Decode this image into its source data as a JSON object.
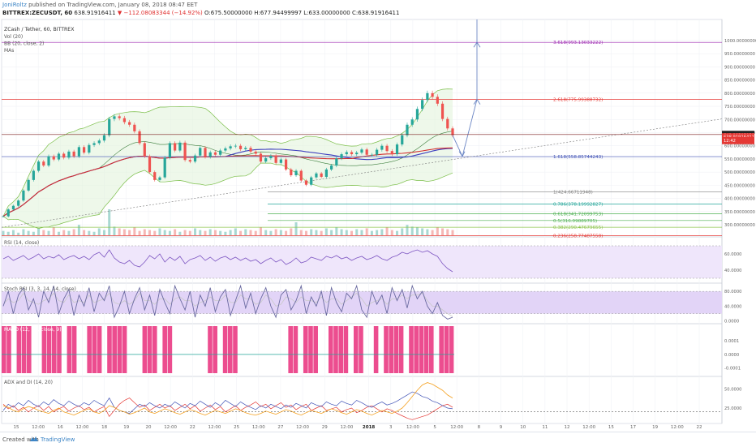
{
  "header": {
    "author": "JoniRoltz",
    "published": "published on TradingView.com, January 08, 2018 08:47 EET",
    "symbol": "BITTREX:ZECUSDT, 60",
    "last": "638.91916411",
    "change": "▼ −112.08083344 (−14.92%)",
    "ohlc": "O:675.50000000 H:677.94499997 L:633.00000000 C:638.91916411"
  },
  "footer": {
    "created": "Created with",
    "brand": "TradingView"
  },
  "colors": {
    "up": "#26a69a",
    "down": "#ef5350",
    "bb": "#7cbf4a",
    "ma_red": "#d32f2f",
    "ma_blue": "#3f3fbf",
    "rsi": "#7e57c2",
    "stoch_k": "#6a6aa0",
    "stoch_d": "#c9c9c9",
    "pink": "#ec4d8f",
    "adx": "#f4a020",
    "di_plus": "#3f51b5",
    "di_minus": "#e53935"
  },
  "chart_data": [
    {
      "id": "price",
      "type": "line",
      "title": "ZCash / Tether, 60, BITTREX",
      "indicator_labels": [
        "Vol (20)",
        "BB (20, close, 2)",
        "MAs"
      ],
      "ylim": [
        260,
        1080
      ],
      "y_ticks": [
        "1000.00000000",
        "950.00000000",
        "900.00000000",
        "850.00000000",
        "800.00000000",
        "750.00000000",
        "700.00000000",
        "650.00000000",
        "600.00000000",
        "550.00000000",
        "500.00000000",
        "450.00000000",
        "400.00000000",
        "350.00000000",
        "300.00000000"
      ],
      "x_ticks": [
        "15",
        "12:00",
        "16",
        "12:00",
        "18",
        "19",
        "20",
        "12:00",
        "22",
        "12:00",
        "25",
        "12:00",
        "27",
        "12:00",
        "29",
        "12:00",
        "2018",
        "3",
        "12:00",
        "5",
        "12:00",
        "8",
        "9",
        "10",
        "11",
        "12",
        "12:00",
        "15",
        "17",
        "19",
        "12:00",
        "22"
      ],
      "current_labels": [
        {
          "price": 642.98,
          "text": "642.98505959",
          "color": "#222222"
        },
        {
          "price": 634.0,
          "text": "638.91916411",
          "color": "#e53935"
        },
        {
          "price": 620.0,
          "text": "12:42",
          "color": "#e53935"
        }
      ],
      "close": [
        332,
        358,
        372,
        392,
        430,
        470,
        505,
        540,
        525,
        560,
        548,
        570,
        555,
        578,
        560,
        595,
        574,
        603,
        610,
        620,
        640,
        702,
        712,
        705,
        690,
        680,
        655,
        610,
        560,
        500,
        470,
        480,
        555,
        610,
        582,
        612,
        546,
        540,
        563,
        592,
        558,
        575,
        566,
        582,
        590,
        598,
        600,
        587,
        592,
        578,
        570,
        540,
        553,
        562,
        535,
        548,
        510,
        488,
        505,
        468,
        452,
        480,
        495,
        482,
        510,
        525,
        552,
        568,
        576,
        568,
        574,
        586,
        566,
        566,
        585,
        600,
        580,
        568,
        605,
        640,
        680,
        700,
        740,
        774,
        800,
        786,
        760,
        702,
        666,
        640
      ],
      "volume": [
        5,
        4,
        6,
        3,
        7,
        5,
        4,
        8,
        6,
        5,
        9,
        4,
        6,
        5,
        7,
        12,
        6,
        5,
        4,
        8,
        6,
        30,
        10,
        8,
        7,
        6,
        9,
        5,
        7,
        6,
        5,
        8,
        6,
        5,
        7,
        4,
        6,
        5,
        8,
        6,
        5,
        7,
        6,
        5,
        4,
        6,
        8,
        5,
        7,
        6,
        5,
        9,
        6,
        5,
        7,
        6,
        5,
        8,
        15,
        6,
        5,
        7,
        6,
        5,
        8,
        6,
        9,
        7,
        6,
        5,
        7,
        6,
        8,
        5,
        6,
        7,
        9,
        6,
        5,
        8,
        12,
        10,
        9,
        8,
        7,
        6,
        9,
        8,
        7,
        6
      ],
      "fib_levels": [
        {
          "ratio": "3.618",
          "price": 993.13033222,
          "text": "3.618(993.13033222)",
          "color": "#9c27b0"
        },
        {
          "ratio": "2.618",
          "price": 775.99388732,
          "text": "2.618(775.99388732)",
          "color": "#e53935"
        },
        {
          "ratio": "1.618",
          "price": 558.85744243,
          "text": "1.618(558.85744243)",
          "color": "#3f51b5"
        },
        {
          "ratio": "1",
          "price": 424.66711948,
          "text": "1(424.66711948)",
          "color": "#808080"
        },
        {
          "ratio": "0.786",
          "price": 378.19992827,
          "text": "0.786(378.19992827)",
          "color": "#26a69a"
        },
        {
          "ratio": "0.618",
          "price": 341.72099753,
          "text": "0.618(341.72099753)",
          "color": "#4caf50"
        },
        {
          "ratio": "0.5",
          "price": 316.09889705,
          "text": "0.5(316.09889705)",
          "color": "#4caf50"
        },
        {
          "ratio": "0.382",
          "price": 290.47679655,
          "text": "0.382(290.47679655)",
          "color": "#8bc34a"
        },
        {
          "ratio": "0.236",
          "price": 258.77487558,
          "text": "0.236(258.77487558)",
          "color": "#e53935"
        }
      ]
    },
    {
      "id": "rsi",
      "type": "line",
      "title": "RSI (14, close)",
      "ylim": [
        25,
        80
      ],
      "y_ticks": [
        "60.0000",
        "40.0000"
      ],
      "bands": [
        70,
        30
      ],
      "values": [
        54,
        57,
        52,
        55,
        58,
        53,
        56,
        60,
        54,
        57,
        55,
        59,
        53,
        56,
        58,
        54,
        57,
        53,
        59,
        62,
        56,
        65,
        55,
        50,
        48,
        52,
        46,
        44,
        50,
        58,
        54,
        60,
        50,
        56,
        52,
        57,
        48,
        53,
        55,
        58,
        52,
        56,
        51,
        55,
        57,
        53,
        56,
        52,
        55,
        51,
        53,
        48,
        52,
        55,
        50,
        53,
        47,
        50,
        55,
        49,
        51,
        56,
        54,
        52,
        57,
        55,
        58,
        54,
        56,
        52,
        55,
        57,
        53,
        55,
        58,
        54,
        52,
        56,
        58,
        62,
        60,
        63,
        65,
        62,
        64,
        60,
        57,
        48,
        42,
        38
      ]
    },
    {
      "id": "stoch",
      "type": "line",
      "title": "Stoch RSI (3, 3, 14, 14, close)",
      "ylim": [
        -5,
        100
      ],
      "y_ticks": [
        "80.0000",
        "40.0000",
        "0.0000"
      ],
      "bands": [
        80,
        20
      ],
      "k": [
        40,
        80,
        20,
        70,
        90,
        30,
        60,
        10,
        80,
        50,
        95,
        20,
        60,
        85,
        15,
        70,
        40,
        90,
        25,
        75,
        55,
        95,
        10,
        40,
        80,
        20,
        60,
        90,
        30,
        70,
        15,
        85,
        50,
        20,
        95,
        60,
        30,
        80,
        10,
        70,
        40,
        90,
        25,
        65,
        85,
        15,
        55,
        95,
        35,
        75,
        20,
        60,
        90,
        40,
        10,
        70,
        85,
        30,
        55,
        95,
        20,
        65,
        40,
        80,
        15,
        90,
        50,
        25,
        75,
        60,
        95,
        30,
        10,
        80,
        45,
        70,
        20,
        90,
        55,
        85,
        35,
        95,
        60,
        80,
        40,
        20,
        50,
        15,
        5,
        10
      ],
      "d": [
        45,
        60,
        50,
        55,
        75,
        55,
        50,
        45,
        55,
        60,
        75,
        55,
        50,
        70,
        50,
        55,
        50,
        70,
        50,
        55,
        60,
        75,
        50,
        45,
        55,
        45,
        55,
        75,
        55,
        55,
        45,
        60,
        60,
        45,
        60,
        65,
        55,
        55,
        40,
        50,
        55,
        65,
        55,
        55,
        70,
        50,
        50,
        70,
        60,
        60,
        45,
        50,
        70,
        60,
        40,
        45,
        65,
        60,
        50,
        65,
        55,
        55,
        50,
        65,
        50,
        60,
        60,
        45,
        55,
        65,
        75,
        60,
        40,
        50,
        55,
        60,
        45,
        60,
        60,
        70,
        60,
        70,
        70,
        75,
        55,
        40,
        40,
        30,
        20,
        12
      ]
    },
    {
      "id": "macd",
      "type": "bar",
      "title": "MACD (12, 26, close, 9)",
      "ylim": [
        -0.00015,
        0.00022
      ],
      "y_ticks": [
        "0.0001",
        "0.0000",
        "-0.0001"
      ],
      "stripes": [
        1,
        1,
        0,
        1,
        1,
        1,
        0,
        0,
        1,
        1,
        1,
        1,
        0,
        1,
        1,
        0,
        0,
        1,
        1,
        1,
        0,
        1,
        1,
        1,
        1,
        0,
        0,
        0,
        1,
        1,
        1,
        0,
        1,
        1,
        0,
        0,
        0,
        0,
        0,
        0,
        0,
        1,
        1,
        0,
        1,
        1,
        1,
        0,
        0,
        0,
        0,
        0,
        0,
        0,
        0,
        0,
        0,
        1,
        1,
        0,
        1,
        1,
        1,
        0,
        0,
        1,
        1,
        1,
        1,
        0,
        1,
        1,
        0,
        0,
        1,
        0,
        1,
        1,
        1,
        1,
        0,
        1,
        1,
        1,
        1,
        1,
        0,
        1,
        1,
        1
      ]
    },
    {
      "id": "adx",
      "type": "line",
      "title": "ADX and DI (14, 20)",
      "ylim": [
        5,
        65
      ],
      "y_ticks": [
        "50.0000",
        "25.0000"
      ],
      "bands": [
        20
      ],
      "adx": [
        28,
        26,
        22,
        20,
        24,
        27,
        25,
        22,
        20,
        18,
        22,
        25,
        20,
        18,
        16,
        19,
        22,
        24,
        20,
        18,
        22,
        28,
        26,
        22,
        20,
        17,
        19,
        22,
        25,
        20,
        18,
        21,
        24,
        22,
        19,
        17,
        20,
        23,
        21,
        18,
        16,
        19,
        22,
        20,
        18,
        21,
        24,
        22,
        19,
        17,
        16,
        18,
        21,
        19,
        17,
        20,
        23,
        21,
        18,
        16,
        19,
        22,
        20,
        18,
        21,
        24,
        22,
        19,
        17,
        20,
        23,
        21,
        18,
        16,
        19,
        22,
        20,
        18,
        21,
        25,
        32,
        40,
        48,
        55,
        58,
        56,
        52,
        48,
        42,
        38
      ],
      "di_plus": [
        22,
        30,
        26,
        32,
        28,
        35,
        30,
        27,
        33,
        29,
        36,
        31,
        28,
        34,
        30,
        27,
        32,
        29,
        35,
        31,
        28,
        38,
        26,
        22,
        20,
        18,
        24,
        30,
        27,
        32,
        28,
        25,
        30,
        27,
        33,
        29,
        25,
        31,
        28,
        34,
        30,
        26,
        32,
        28,
        35,
        31,
        27,
        33,
        29,
        26,
        23,
        28,
        25,
        30,
        27,
        24,
        29,
        26,
        31,
        28,
        25,
        32,
        29,
        27,
        33,
        30,
        28,
        34,
        31,
        29,
        35,
        32,
        28,
        26,
        30,
        33,
        29,
        31,
        34,
        38,
        42,
        46,
        44,
        40,
        38,
        34,
        32,
        28,
        25,
        24
      ],
      "di_minus": [
        30,
        24,
        28,
        22,
        26,
        20,
        25,
        28,
        22,
        27,
        20,
        24,
        27,
        21,
        25,
        28,
        23,
        26,
        20,
        24,
        27,
        14,
        22,
        30,
        35,
        38,
        32,
        26,
        29,
        22,
        26,
        30,
        25,
        28,
        22,
        26,
        30,
        24,
        28,
        21,
        25,
        29,
        23,
        27,
        20,
        24,
        28,
        22,
        26,
        29,
        33,
        27,
        30,
        24,
        28,
        32,
        26,
        29,
        23,
        27,
        30,
        22,
        25,
        28,
        22,
        24,
        26,
        20,
        23,
        25,
        19,
        22,
        26,
        28,
        24,
        20,
        24,
        22,
        18,
        15,
        12,
        10,
        12,
        14,
        16,
        20,
        24,
        28,
        30,
        26
      ]
    }
  ]
}
